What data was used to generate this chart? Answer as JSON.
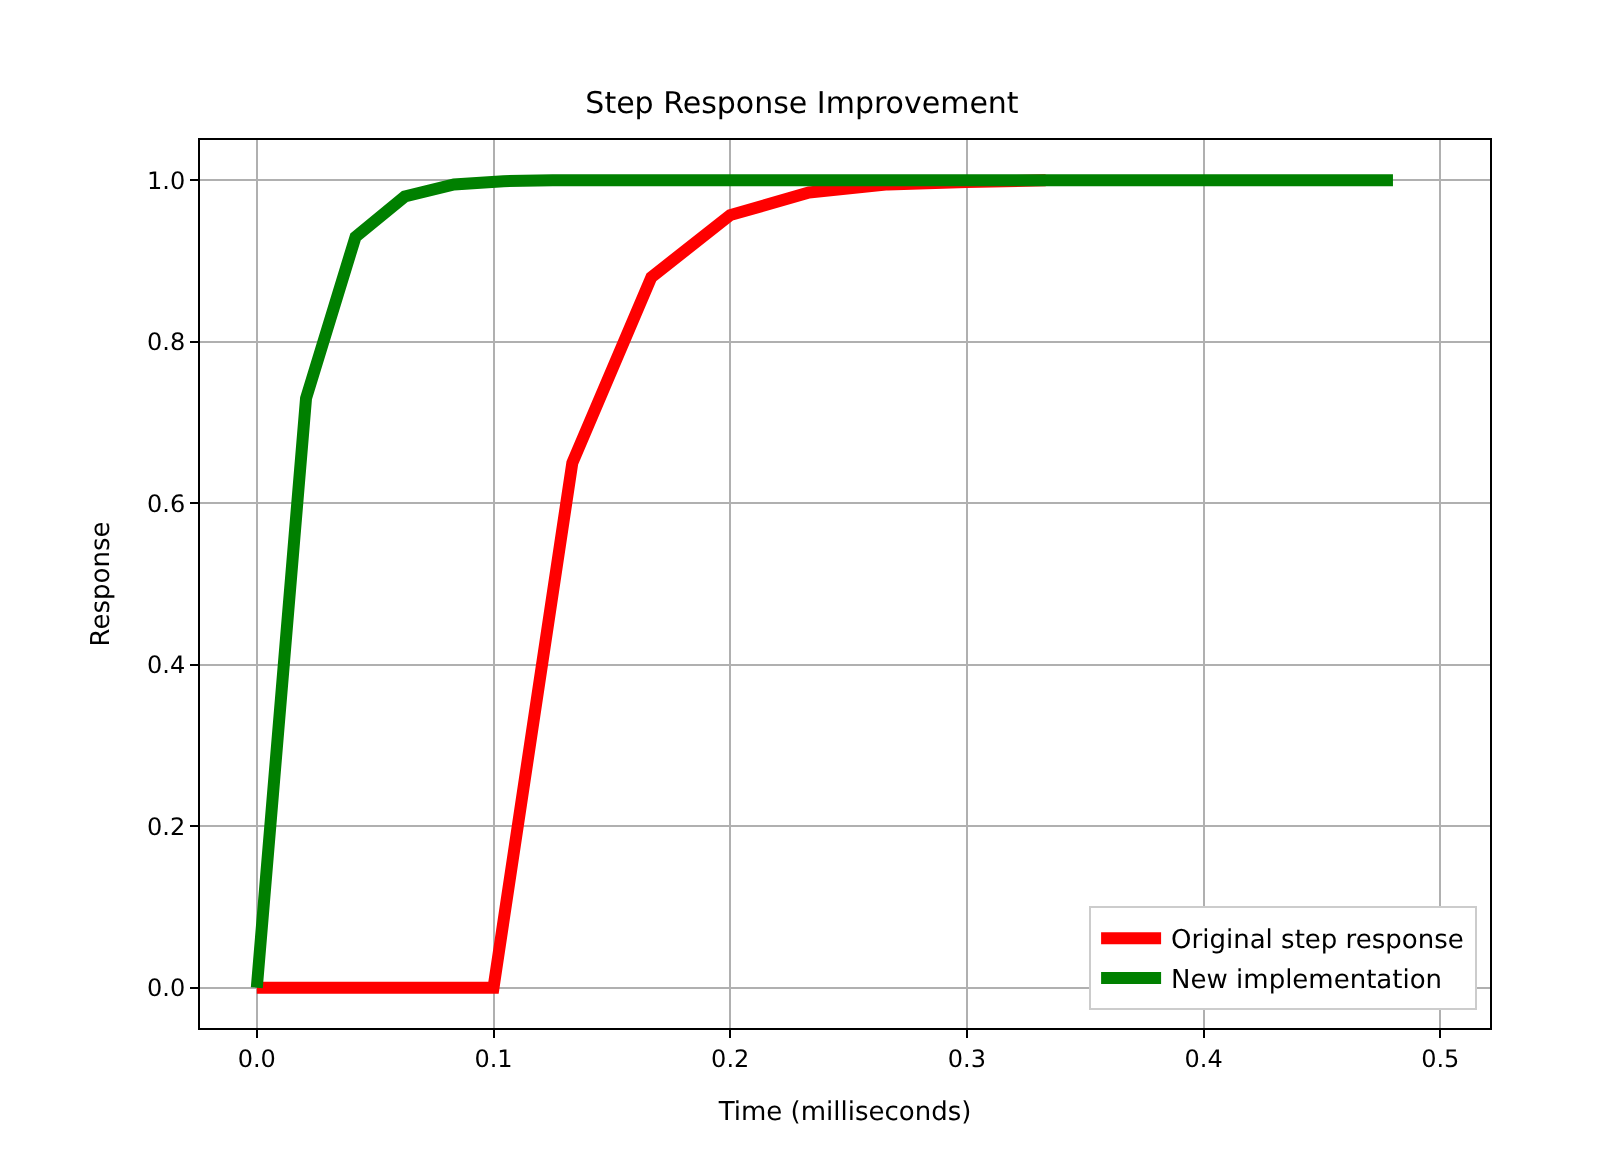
{
  "chart_data": {
    "type": "line",
    "title": "Step Response Improvement",
    "xlabel": "Time (milliseconds)",
    "ylabel": "Response",
    "xlim": [
      -0.024,
      0.521
    ],
    "ylim": [
      -0.05,
      1.05
    ],
    "xticks": [
      {
        "value": 0,
        "label": "0.0"
      },
      0.1,
      0.2,
      0.3,
      0.4,
      0.5
    ],
    "yticks": [
      {
        "value": 0,
        "label": "0.0"
      },
      0.2,
      0.4,
      0.6,
      0.8,
      {
        "value": 1,
        "label": "1.0"
      }
    ],
    "grid": true,
    "legend": "bottom right",
    "marker": "none",
    "line_style": "solid",
    "series": [
      {
        "name": "Original step response",
        "color": "#ff0000",
        "x": [
          0,
          0.0333,
          0.0667,
          0.1,
          0.1333,
          0.1667,
          0.2,
          0.2333,
          0.2667,
          0.3,
          0.3333
        ],
        "values": [
          0,
          0,
          0,
          0,
          0.65,
          0.88,
          0.957,
          0.985,
          0.995,
          0.998,
          1
        ]
      },
      {
        "name": "New implementation",
        "color": "#008000",
        "x": [
          0,
          0.0208,
          0.0417,
          0.0625,
          0.0833,
          0.1042,
          0.125,
          0.1458,
          0.2,
          0.3,
          0.4,
          0.48
        ],
        "values": [
          0,
          0.73,
          0.93,
          0.98,
          0.995,
          0.999,
          1,
          1,
          1,
          1,
          1,
          1
        ]
      }
    ]
  }
}
